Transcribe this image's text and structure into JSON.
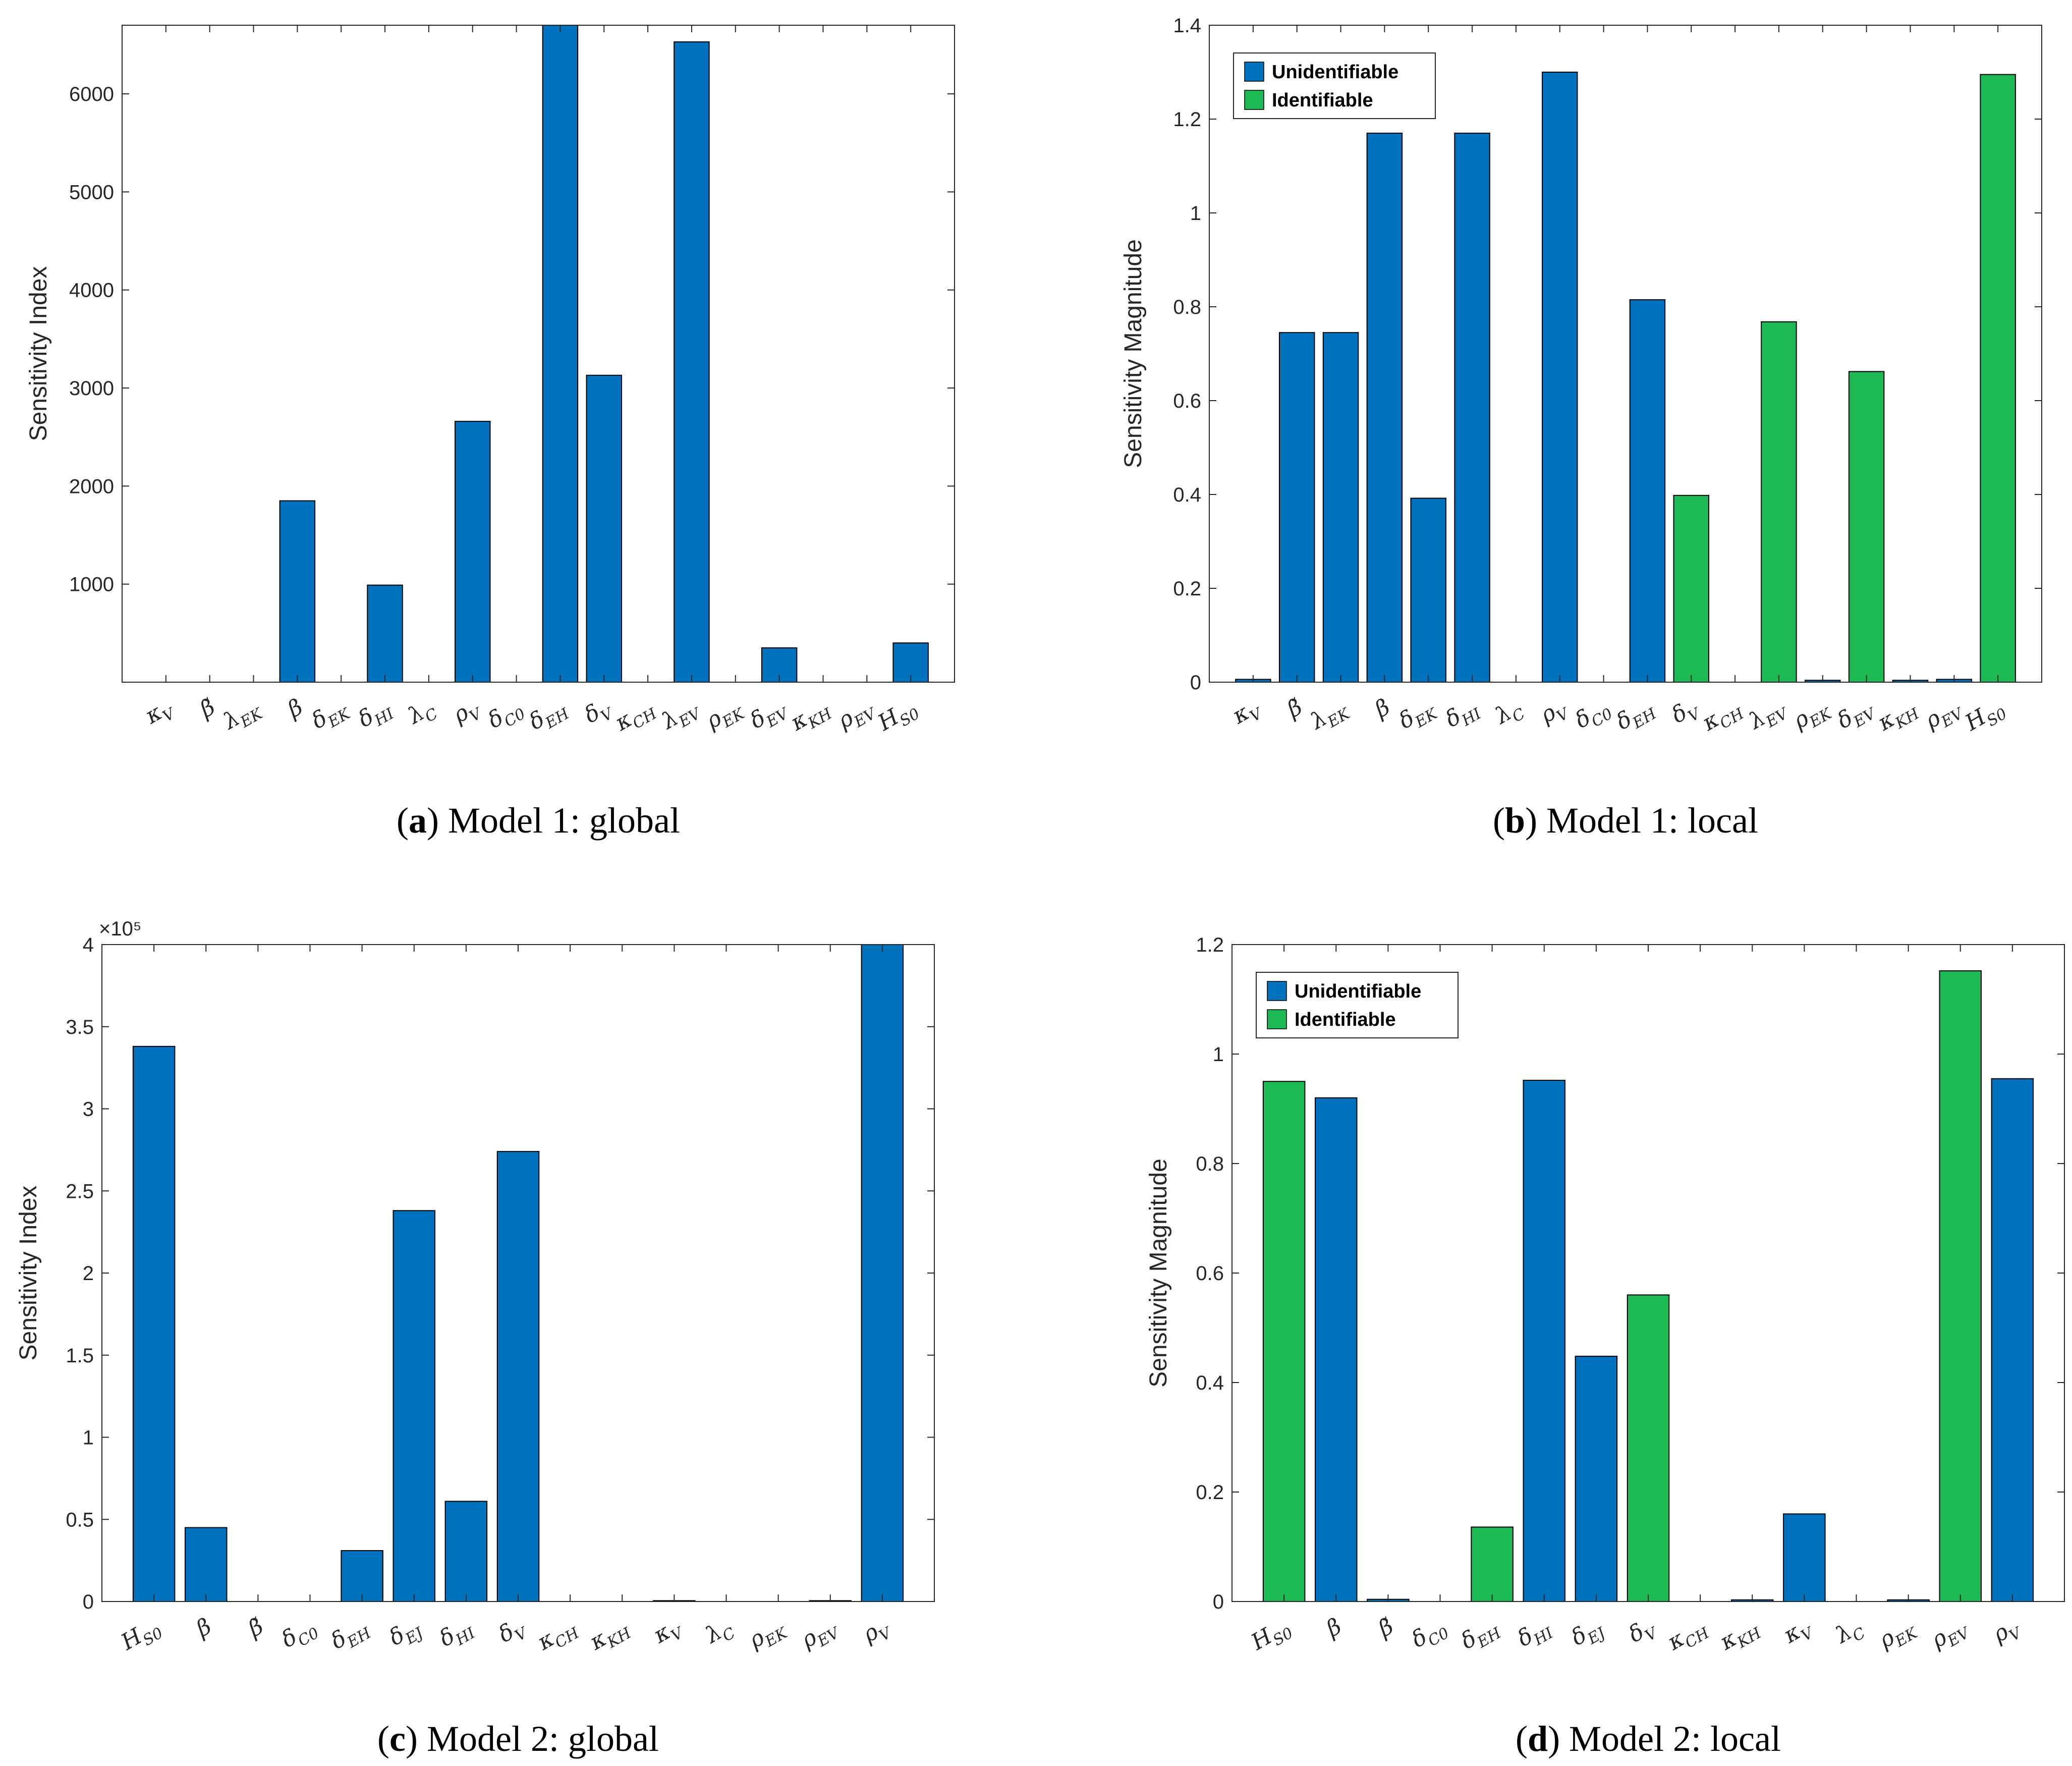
{
  "colors": {
    "unidentifiable": "#0072BD",
    "identifiable": "#1DB954"
  },
  "captions": [
    {
      "letter": "a",
      "text": "Model 1: global"
    },
    {
      "letter": "b",
      "text": "Model 1: local"
    },
    {
      "letter": "c",
      "text": "Model 2: global"
    },
    {
      "letter": "d",
      "text": "Model 2: local"
    }
  ],
  "chart_data": [
    {
      "id": "a",
      "type": "bar",
      "ylabel": "Sensitivity Index",
      "ylim": [
        0,
        6700
      ],
      "yticks": [
        1000,
        2000,
        3000,
        4000,
        5000,
        6000
      ],
      "ytick_labels": [
        "1000",
        "2000",
        "3000",
        "4000",
        "5000",
        "6000"
      ],
      "grid": false,
      "categories": [
        "κ_V",
        "β̃",
        "λ_EK",
        "β",
        "δ_EK",
        "δ_HI",
        "λ_C",
        "ρ_V",
        "δ_C0",
        "δ_EH",
        "δ_V",
        "κ_CH",
        "λ_EV",
        "ρ_EK",
        "δ_EV",
        "κ_KH",
        "ρ_EV",
        "H_S0"
      ],
      "values": [
        0,
        0,
        0,
        1850,
        0,
        990,
        0,
        2660,
        0,
        6700,
        3130,
        0,
        6530,
        0,
        350,
        0,
        0,
        400
      ],
      "classes": [
        "u",
        "u",
        "u",
        "u",
        "u",
        "u",
        "u",
        "u",
        "u",
        "u",
        "u",
        "u",
        "u",
        "u",
        "u",
        "u",
        "u",
        "u"
      ]
    },
    {
      "id": "b",
      "type": "bar",
      "ylabel": "Sensitivity Magnitude",
      "ylim": [
        0,
        1.4
      ],
      "yticks": [
        0,
        0.2,
        0.4,
        0.6,
        0.8,
        1,
        1.2,
        1.4
      ],
      "ytick_labels": [
        "0",
        "0.2",
        "0.4",
        "0.6",
        "0.8",
        "1",
        "1.2",
        "1.4"
      ],
      "grid": false,
      "legend": {
        "placement": "top-left",
        "entries": [
          "Unidentifiable",
          "Identifiable"
        ]
      },
      "categories": [
        "κ_V",
        "β̃",
        "λ_EK",
        "β",
        "δ_EK",
        "δ_HI",
        "λ_C",
        "ρ_V",
        "δ_C0",
        "δ_EH",
        "δ_V",
        "κ_CH",
        "λ_EV",
        "ρ_EK",
        "δ_EV",
        "κ_KH",
        "ρ_EV",
        "H_S0"
      ],
      "values": [
        0.006,
        0.745,
        0.745,
        1.17,
        0.392,
        1.17,
        0,
        1.3,
        0,
        0.815,
        0.398,
        0,
        0.768,
        0.004,
        0.662,
        0.004,
        0.006,
        1.295
      ],
      "classes": [
        "u",
        "u",
        "u",
        "u",
        "u",
        "u",
        "u",
        "u",
        "u",
        "u",
        "i",
        "u",
        "i",
        "u",
        "i",
        "u",
        "u",
        "i"
      ]
    },
    {
      "id": "c",
      "type": "bar",
      "ylabel": "Sensitivity Index",
      "exponent_label": "×10⁵",
      "ylim": [
        0,
        4
      ],
      "yticks": [
        0,
        0.5,
        1,
        1.5,
        2,
        2.5,
        3,
        3.5,
        4
      ],
      "ytick_labels": [
        "0",
        "0.5",
        "1",
        "1.5",
        "2",
        "2.5",
        "3",
        "3.5",
        "4"
      ],
      "grid": false,
      "categories": [
        "H_S0",
        "β",
        "β̃",
        "δ_C0",
        "δ_EH",
        "δ_EJ",
        "δ_HI",
        "δ_V",
        "κ_CH",
        "κ_KH",
        "κ_V",
        "λ_C",
        "ρ_EK",
        "ρ_EV",
        "ρ_V"
      ],
      "values": [
        3.38,
        0.45,
        0,
        0,
        0.31,
        2.38,
        0.61,
        2.74,
        0,
        0,
        0.005,
        0,
        0,
        0.005,
        4.0
      ],
      "classes": [
        "u",
        "u",
        "u",
        "u",
        "u",
        "u",
        "u",
        "u",
        "u",
        "u",
        "u",
        "u",
        "u",
        "u",
        "u"
      ]
    },
    {
      "id": "d",
      "type": "bar",
      "ylabel": "Sensitivity Magnitude",
      "ylim": [
        0,
        1.2
      ],
      "yticks": [
        0,
        0.2,
        0.4,
        0.6,
        0.8,
        1,
        1.2
      ],
      "ytick_labels": [
        "0",
        "0.2",
        "0.4",
        "0.6",
        "0.8",
        "1",
        "1.2"
      ],
      "grid": false,
      "legend": {
        "placement": "top-left",
        "entries": [
          "Unidentifiable",
          "Identifiable"
        ]
      },
      "categories": [
        "H_S0",
        "β",
        "β̃",
        "δ_C0",
        "δ_EH",
        "δ_HI",
        "δ_EJ",
        "δ_V",
        "κ_CH",
        "κ_KH",
        "κ_V",
        "λ_C",
        "ρ_EK",
        "ρ_EV",
        "ρ_V"
      ],
      "values": [
        0.95,
        0.92,
        0.004,
        0,
        0.136,
        0.952,
        0.448,
        0.56,
        0,
        0.003,
        0.16,
        0,
        0.003,
        1.152,
        0.955
      ],
      "classes": [
        "i",
        "u",
        "u",
        "u",
        "i",
        "u",
        "u",
        "i",
        "u",
        "u",
        "u",
        "u",
        "u",
        "i",
        "u"
      ]
    }
  ]
}
